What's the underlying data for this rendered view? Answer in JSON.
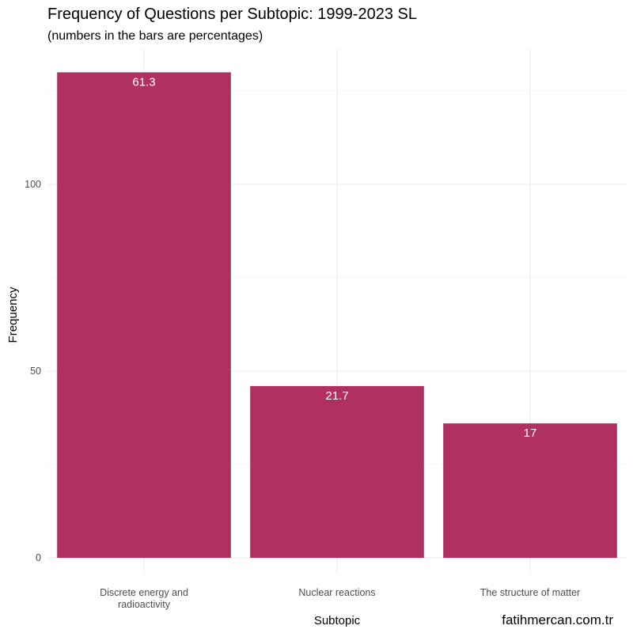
{
  "chart_data": {
    "type": "bar",
    "title": "Frequency of Questions per Subtopic: 1999-2023 SL",
    "subtitle": "(numbers in the bars are percentages)",
    "xlabel": "Subtopic",
    "ylabel": "Frequency",
    "categories": [
      [
        "Discrete energy and",
        "radioactivity"
      ],
      [
        "Nuclear reactions"
      ],
      [
        "The structure of matter"
      ]
    ],
    "values": [
      130,
      46,
      36
    ],
    "labels": [
      "61.3",
      "21.7",
      "17"
    ],
    "yticks": [
      0,
      50,
      100
    ],
    "ylim": [
      0,
      137
    ],
    "bar_color": "#b03060",
    "grid": true
  },
  "caption": "fatihmercan.com.tr"
}
